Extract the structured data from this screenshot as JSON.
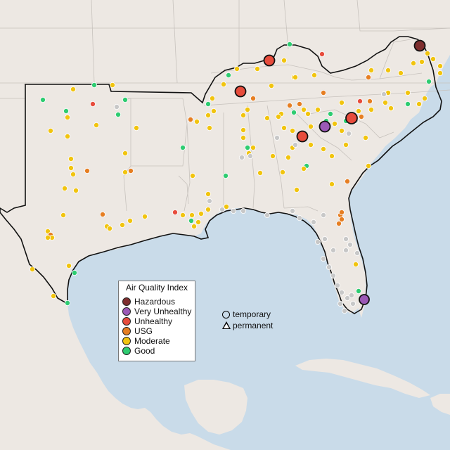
{
  "legend": {
    "title": "Air Quality Index",
    "categories": [
      {
        "label": "Hazardous",
        "color": "#7e2e2e"
      },
      {
        "label": "Very Unhealthy",
        "color": "#9b59b6"
      },
      {
        "label": "Unhealthy",
        "color": "#e74c3c"
      },
      {
        "label": "USG",
        "color": "#e67e22"
      },
      {
        "label": "Moderate",
        "color": "#f1c40f"
      },
      {
        "label": "Good",
        "color": "#2ecc71"
      }
    ]
  },
  "shape_legend": {
    "temporary_label": "temporary",
    "permanent_label": "permanent"
  },
  "colors": {
    "water": "#c9dbe9",
    "land": "#ede8e3",
    "no_data": "#c8c8c8"
  }
}
